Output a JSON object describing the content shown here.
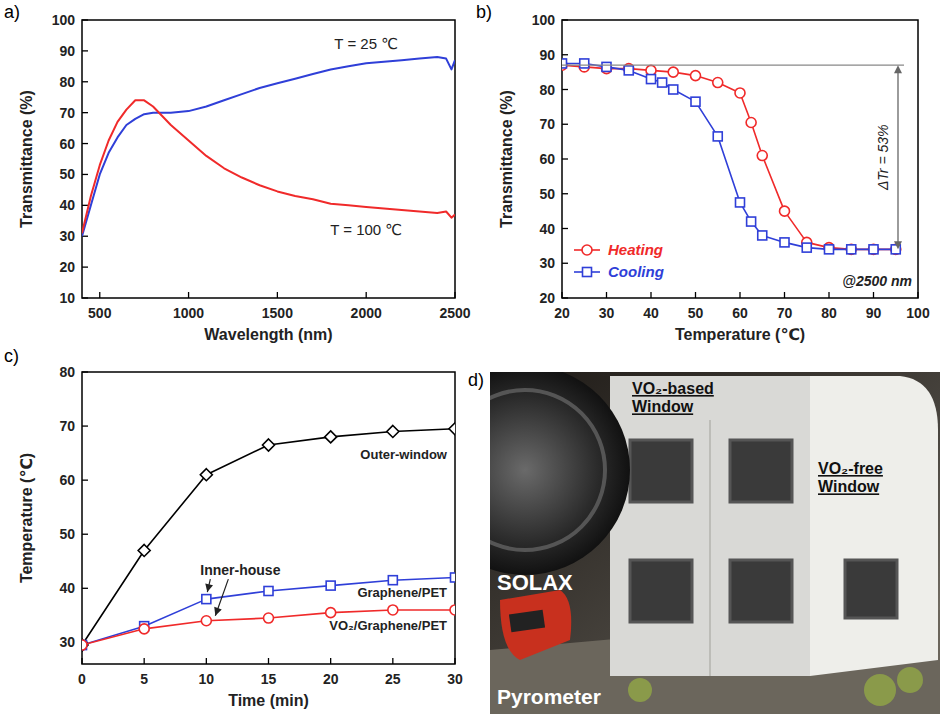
{
  "chart_data": [
    {
      "type": "line",
      "title": "a)",
      "x_label": "Wavelength (nm)",
      "y_label": "Transmittance (%)",
      "x": [
        400,
        450,
        500,
        550,
        600,
        650,
        700,
        750,
        800,
        850,
        900,
        1000,
        1100,
        1200,
        1300,
        1400,
        1500,
        1600,
        1700,
        1800,
        1900,
        2000,
        2100,
        2200,
        2300,
        2400,
        2450,
        2480,
        2500
      ],
      "xlim": [
        400,
        2500
      ],
      "xticks": [
        500,
        1000,
        1500,
        2000,
        2500
      ],
      "ylim": [
        10,
        100
      ],
      "yticks": [
        10,
        20,
        30,
        40,
        50,
        60,
        70,
        80,
        90,
        100
      ],
      "grid": false,
      "series": [
        {
          "name": "T = 25 ℃",
          "color": "#2f3fd8",
          "values": [
            30,
            40,
            50,
            57,
            62,
            66,
            68,
            69.5,
            70,
            70,
            70,
            70.5,
            72,
            74,
            76,
            78,
            79.5,
            81,
            82.5,
            84,
            85,
            86,
            86.5,
            87,
            87.5,
            88,
            87.5,
            84,
            87
          ]
        },
        {
          "name": "T = 100 ℃",
          "color": "#f02a2a",
          "values": [
            31,
            43,
            53,
            61,
            67,
            71,
            74,
            74,
            72,
            69,
            66,
            61,
            56,
            52,
            49,
            46.5,
            44.5,
            43,
            42,
            40.5,
            40,
            39.5,
            39,
            38.5,
            38,
            37.5,
            38,
            36,
            37
          ]
        }
      ]
    },
    {
      "type": "line",
      "title": "b)",
      "x_label": "Temperature (℃)",
      "y_label": "Transmittance (%)",
      "xlim": [
        20,
        100
      ],
      "xticks": [
        20,
        30,
        40,
        50,
        60,
        70,
        80,
        90,
        100
      ],
      "ylim": [
        20,
        100
      ],
      "yticks": [
        20,
        30,
        40,
        50,
        60,
        70,
        80,
        90,
        100
      ],
      "grid": false,
      "legend": "lower left",
      "annotations": [
        "ΔTr = 53%",
        "@2500 nm"
      ],
      "series": [
        {
          "name": "Heating",
          "color": "#f02a2a",
          "marker": "circle",
          "x": [
            20,
            25,
            30,
            35,
            40,
            45,
            50,
            55,
            60,
            62.5,
            65,
            70,
            75,
            80,
            85,
            90,
            95
          ],
          "values": [
            87,
            86.5,
            86,
            86,
            85.5,
            85,
            84,
            82,
            79,
            70.5,
            61,
            45,
            36,
            34.5,
            34,
            34,
            34
          ]
        },
        {
          "name": "Cooling",
          "color": "#2f3fd8",
          "marker": "square",
          "x": [
            20,
            25,
            30,
            35,
            40,
            42.5,
            45,
            50,
            55,
            60,
            62.5,
            65,
            70,
            75,
            80,
            85,
            90,
            95
          ],
          "values": [
            87.5,
            87.5,
            86.5,
            85.5,
            83,
            82,
            80,
            76.5,
            66.5,
            47.5,
            42,
            38,
            36,
            34.5,
            34,
            34,
            34,
            34
          ]
        }
      ]
    },
    {
      "type": "line",
      "title": "c)",
      "x_label": "Time (min)",
      "y_label": "Temperature (℃)",
      "x": [
        0,
        5,
        10,
        15,
        20,
        25,
        30
      ],
      "xlim": [
        0,
        30
      ],
      "xticks": [
        0,
        5,
        10,
        15,
        20,
        25,
        30
      ],
      "ylim": [
        26,
        80
      ],
      "yticks": [
        30,
        40,
        50,
        60,
        70,
        80
      ],
      "grid": false,
      "annotations": [
        "Inner-house"
      ],
      "series": [
        {
          "name": "Outer-window",
          "color": "#000000",
          "marker": "diamond",
          "values": [
            29.5,
            47,
            61,
            66.5,
            68,
            69,
            69.5
          ]
        },
        {
          "name": "Graphene/PET",
          "color": "#2f3fd8",
          "marker": "square",
          "values": [
            29.5,
            33,
            38,
            39.5,
            40.5,
            41.5,
            42
          ]
        },
        {
          "name": "VO₂/Graphene/PET",
          "color": "#f02a2a",
          "marker": "circle",
          "values": [
            29.5,
            32.5,
            34,
            34.5,
            35.5,
            36,
            36
          ]
        }
      ]
    }
  ],
  "photo": {
    "title": "d)",
    "labels": [
      "VO₂-based Window",
      "VO₂-free Window",
      "SOLAX",
      "Pyrometer"
    ]
  }
}
